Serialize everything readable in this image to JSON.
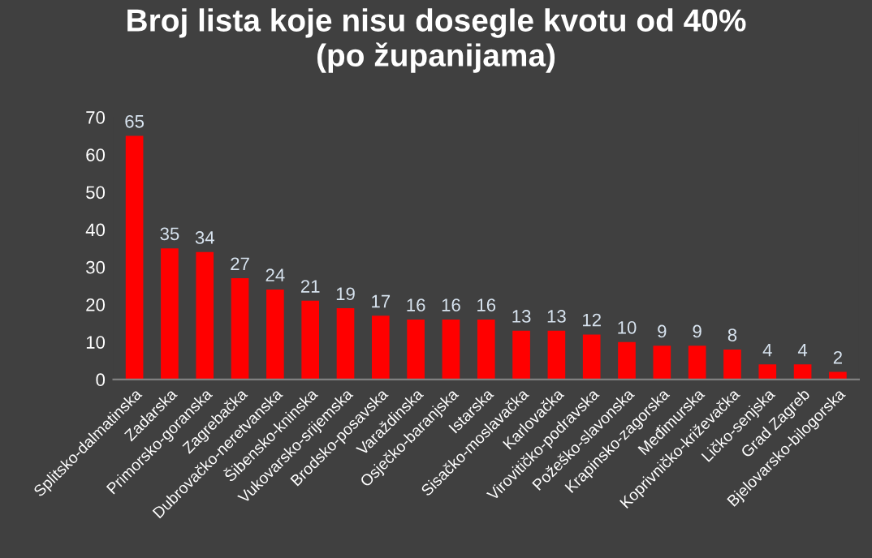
{
  "chart_data": {
    "type": "bar",
    "title": "Broj lista koje nisu dosegle kvotu od 40%\n(po županijama)",
    "categories": [
      "Splitsko-dalmatinska",
      "Zadarska",
      "Primorsko-goranska",
      "Zagrebačka",
      "Dubrovačko-neretvanska",
      "Šibensko-kninska",
      "Vukovarsko-srijemska",
      "Brodsko-posavska",
      "Varaždinska",
      "Osječko-baranjska",
      "Istarska",
      "Sisačko-moslavačka",
      "Karlovačka",
      "Virovitičko-podravska",
      "Požeško-slavonska",
      "Krapinsko-zagorska",
      "Međimurska",
      "Koprivničko-križevačka",
      "Ličko-senjska",
      "Grad Zagreb",
      "Bjelovarsko-bilogorska"
    ],
    "values": [
      65,
      35,
      34,
      27,
      24,
      21,
      19,
      17,
      16,
      16,
      16,
      13,
      13,
      12,
      10,
      9,
      9,
      8,
      4,
      4,
      2
    ],
    "color": "#ff0000",
    "ylim": [
      0,
      70
    ],
    "yticks": [
      0,
      10,
      20,
      30,
      40,
      50,
      60,
      70
    ],
    "grid": false,
    "data_labels": true
  }
}
